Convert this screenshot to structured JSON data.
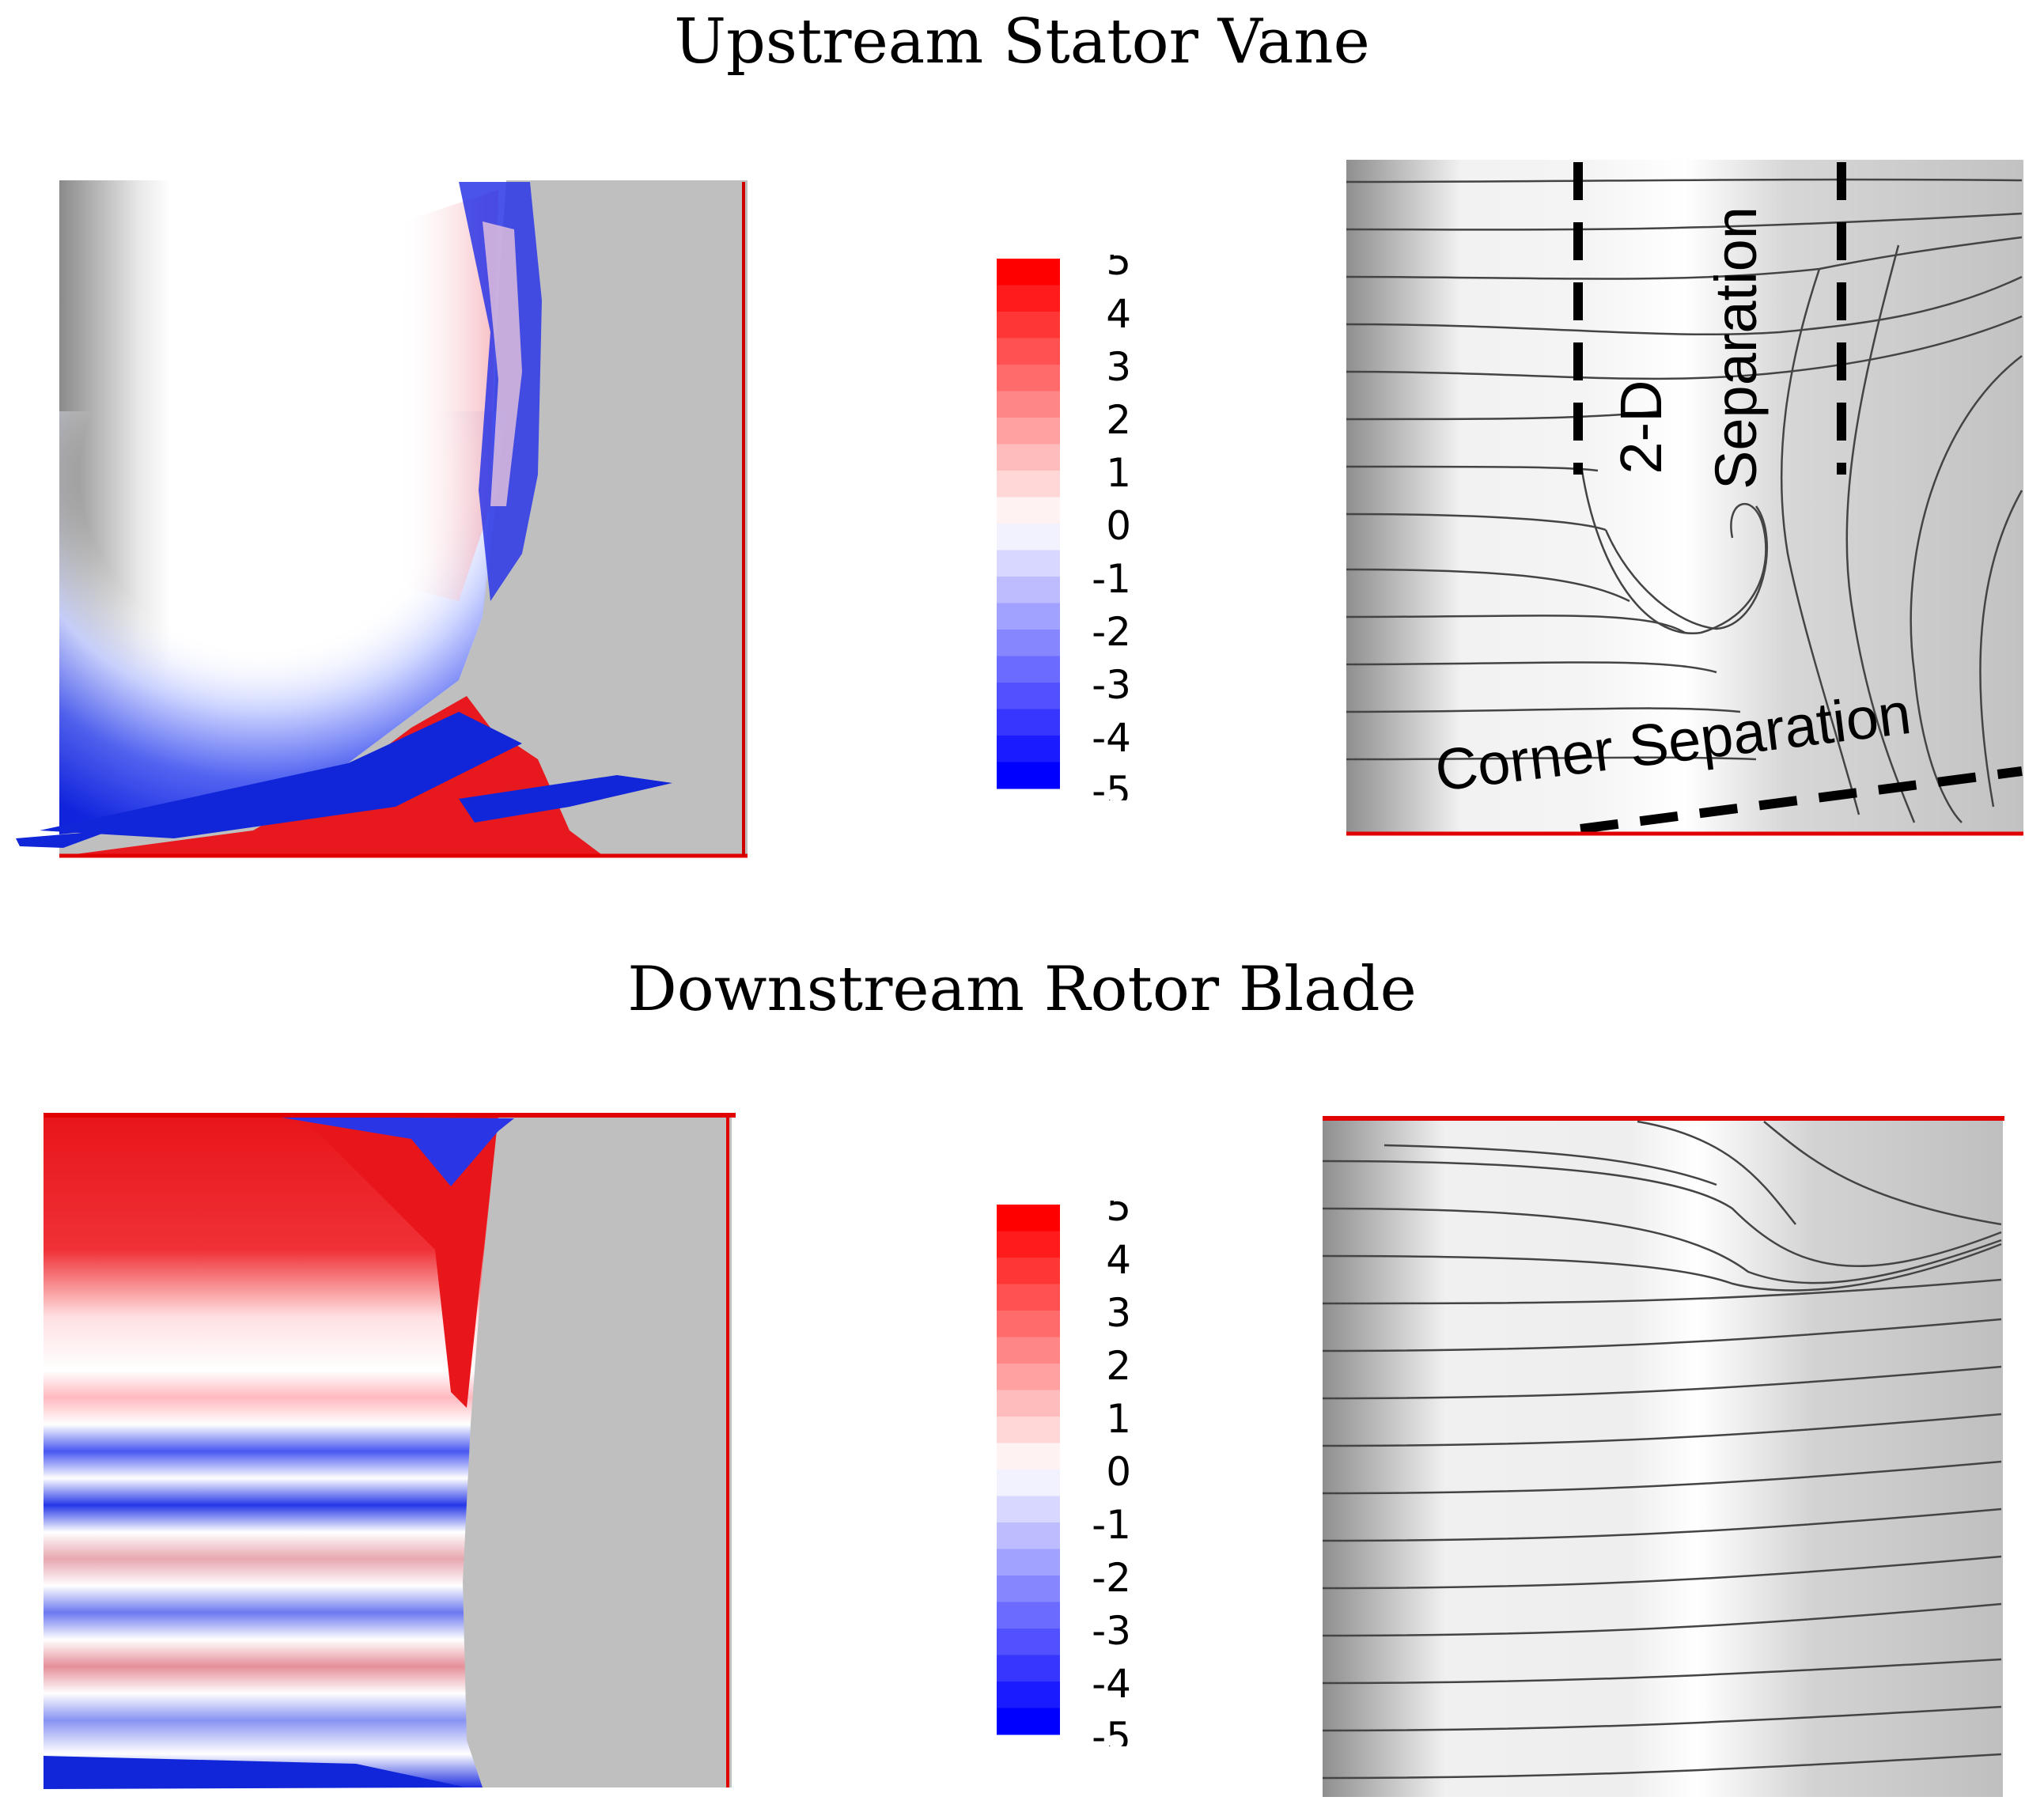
{
  "titles": {
    "top": "Upstream Stator Vane",
    "bottom": "Downstream Rotor Blade"
  },
  "colorbar": {
    "labels": [
      "5",
      "4",
      "3",
      "2",
      "1",
      "0",
      "-1",
      "-2",
      "-3",
      "-4",
      "-5"
    ],
    "high_color": "#ff0000",
    "low_color": "#0000ff",
    "mid_color": "#ffffff"
  },
  "annotations": {
    "two_d": "2-D",
    "separation": "Separation",
    "corner_separation": "Corner Separation"
  },
  "colors": {
    "surface_gray": "#bdbdbd",
    "endwall_line": "#e00000",
    "streamline": "#444444"
  }
}
